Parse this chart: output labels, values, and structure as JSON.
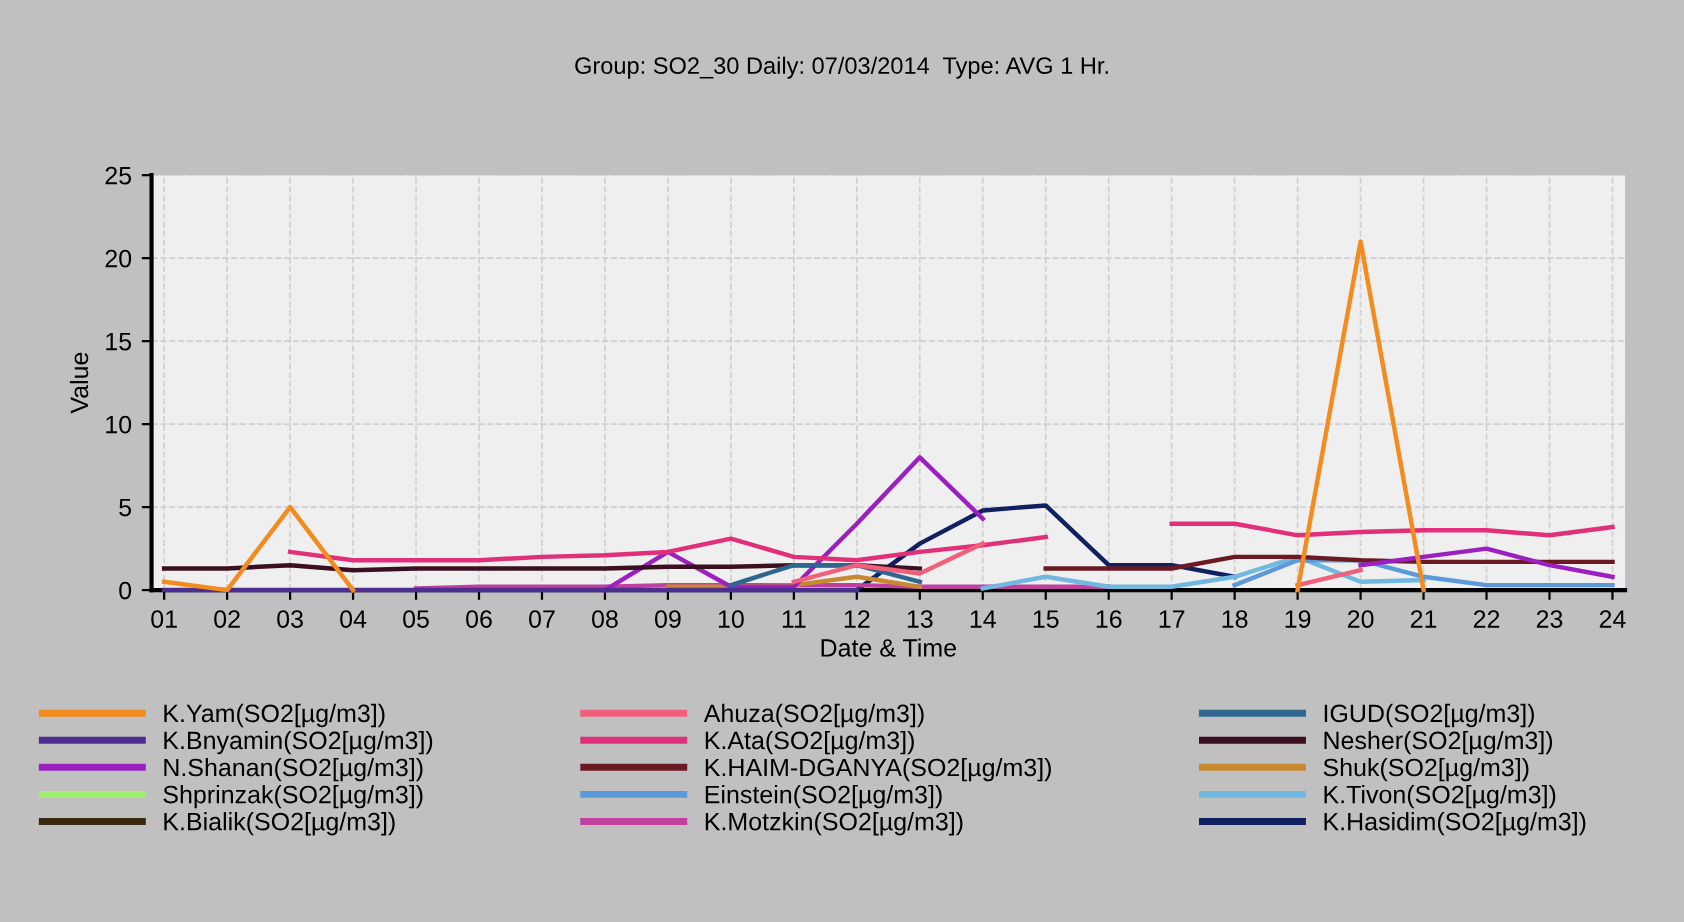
{
  "chart_data": {
    "type": "line",
    "title": "Group: SO2_30 Daily: 07/03/2014  Type: AVG 1 Hr.",
    "xlabel": "Date & Time",
    "ylabel": "Value",
    "categories": [
      "01",
      "02",
      "03",
      "04",
      "05",
      "06",
      "07",
      "08",
      "09",
      "10",
      "11",
      "12",
      "13",
      "14",
      "15",
      "16",
      "17",
      "18",
      "19",
      "20",
      "21",
      "22",
      "23",
      "24"
    ],
    "ylim": [
      0,
      25
    ],
    "yticks": [
      0,
      5,
      10,
      15,
      20,
      25
    ],
    "grid": true,
    "legend": "bottom",
    "marker": "none",
    "line_style": "solid",
    "series": [
      {
        "name": "K.Yam(SO2[µg/m3])",
        "color": "#f28c1e",
        "values": [
          0.5,
          0,
          5,
          0,
          null,
          null,
          null,
          null,
          null,
          null,
          null,
          null,
          null,
          null,
          null,
          null,
          null,
          null,
          0,
          21,
          0,
          null,
          null,
          null
        ]
      },
      {
        "name": "Ahuza(SO2[µg/m3])",
        "color": "#f0607a",
        "values": [
          null,
          null,
          null,
          null,
          null,
          null,
          null,
          null,
          null,
          null,
          0.5,
          1.5,
          1,
          2.8,
          null,
          null,
          null,
          null,
          0.3,
          1.2,
          null,
          null,
          null,
          null
        ]
      },
      {
        "name": "IGUD(SO2[µg/m3])",
        "color": "#2e6690",
        "values": [
          null,
          null,
          null,
          null,
          null,
          null,
          null,
          null,
          null,
          0.3,
          1.5,
          1.5,
          0.5,
          null,
          null,
          null,
          null,
          null,
          null,
          null,
          null,
          null,
          null,
          null
        ]
      },
      {
        "name": "K.Bnyamin(SO2[µg/m3])",
        "color": "#4b2e90",
        "values": [
          0,
          0,
          0,
          0,
          0,
          0,
          0,
          0,
          0,
          0,
          0,
          0,
          null,
          null,
          null,
          null,
          null,
          null,
          null,
          null,
          null,
          null,
          null,
          null
        ]
      },
      {
        "name": "K.Ata(SO2[µg/m3])",
        "color": "#e0307a",
        "values": [
          null,
          null,
          2.3,
          1.8,
          1.8,
          1.8,
          2,
          2.1,
          2.3,
          3.1,
          2,
          1.8,
          2.3,
          2.7,
          3.2,
          null,
          4,
          4,
          3.3,
          3.5,
          3.6,
          3.6,
          3.3,
          3.8
        ]
      },
      {
        "name": "Nesher(SO2[µg/m3])",
        "color": "#3a1020",
        "values": [
          1.3,
          1.3,
          1.5,
          1.2,
          1.3,
          1.3,
          1.3,
          1.3,
          1.4,
          1.4,
          1.5,
          1.5,
          1.3,
          null,
          null,
          null,
          null,
          null,
          null,
          null,
          null,
          null,
          null,
          null
        ]
      },
      {
        "name": "N.Shanan(SO2[µg/m3])",
        "color": "#9a20c0",
        "values": [
          null,
          null,
          null,
          null,
          null,
          null,
          null,
          0,
          2.3,
          0.2,
          0.2,
          4,
          8,
          4.3,
          null,
          null,
          null,
          null,
          null,
          1.5,
          2,
          2.5,
          1.5,
          0.8
        ]
      },
      {
        "name": "K.HAIM-DGANYA(SO2[µg/m3])",
        "color": "#6a1a20",
        "values": [
          null,
          null,
          null,
          null,
          null,
          null,
          null,
          null,
          null,
          null,
          null,
          null,
          null,
          null,
          1.3,
          1.3,
          1.3,
          2,
          2,
          1.8,
          1.7,
          1.7,
          1.7,
          1.7
        ]
      },
      {
        "name": "Shuk(SO2[µg/m3])",
        "color": "#c88a30",
        "values": [
          null,
          null,
          null,
          null,
          null,
          null,
          null,
          null,
          0.2,
          0.2,
          0.3,
          0.8,
          0.2,
          null,
          null,
          null,
          null,
          null,
          null,
          null,
          null,
          null,
          null,
          null
        ]
      },
      {
        "name": "Shprinzak(SO2[µg/m3])",
        "color": "#a0f070",
        "values": [
          null,
          null,
          null,
          null,
          null,
          null,
          null,
          null,
          null,
          null,
          null,
          null,
          null,
          null,
          null,
          null,
          null,
          null,
          null,
          null,
          null,
          null,
          null,
          null
        ]
      },
      {
        "name": "Einstein(SO2[µg/m3])",
        "color": "#5a9ad8",
        "values": [
          null,
          null,
          null,
          null,
          null,
          null,
          null,
          null,
          null,
          null,
          null,
          null,
          null,
          null,
          null,
          null,
          null,
          0.3,
          1.8,
          1.8,
          0.8,
          0.3,
          0.3,
          0.3
        ]
      },
      {
        "name": "K.Tivon(SO2[µg/m3])",
        "color": "#70b8e0",
        "values": [
          null,
          null,
          null,
          null,
          null,
          null,
          null,
          null,
          null,
          null,
          null,
          null,
          null,
          0.1,
          0.8,
          0.2,
          0.2,
          0.8,
          2,
          0.5,
          0.6,
          null,
          null,
          null
        ]
      },
      {
        "name": "K.Bialik(SO2[µg/m3])",
        "color": "#3a2810",
        "values": [
          null,
          null,
          null,
          null,
          null,
          null,
          null,
          null,
          null,
          null,
          null,
          null,
          null,
          null,
          null,
          null,
          null,
          null,
          null,
          null,
          null,
          null,
          null,
          null
        ]
      },
      {
        "name": "K.Motzkin(SO2[µg/m3])",
        "color": "#c040a0",
        "values": [
          null,
          null,
          null,
          null,
          0.1,
          0.2,
          0.2,
          0.2,
          0.3,
          0.3,
          0.3,
          0.3,
          0.2,
          0.2,
          0.2,
          0.2,
          null,
          null,
          null,
          null,
          null,
          null,
          null,
          null
        ]
      },
      {
        "name": "K.Hasidim(SO2[µg/m3])",
        "color": "#102060",
        "values": [
          null,
          null,
          null,
          null,
          null,
          null,
          null,
          null,
          null,
          null,
          null,
          0,
          2.8,
          4.8,
          5.1,
          1.5,
          1.5,
          0.8,
          null,
          null,
          null,
          null,
          null,
          null
        ]
      }
    ]
  }
}
